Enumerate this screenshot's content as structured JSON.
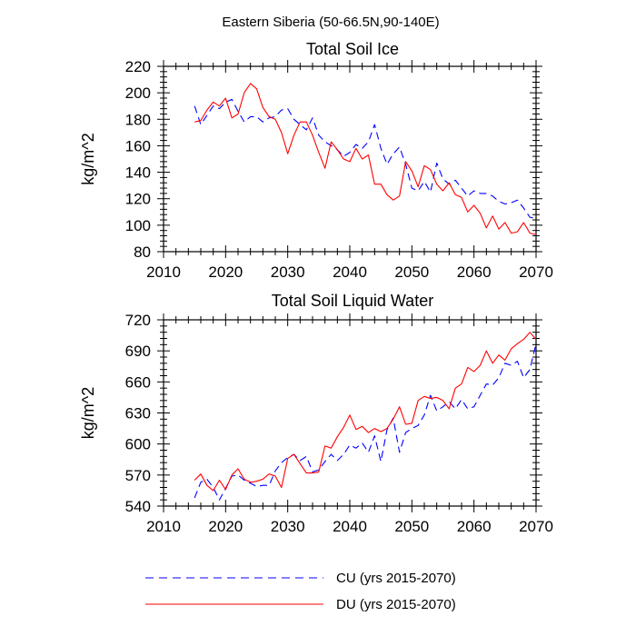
{
  "figure_title": "Eastern Siberia (50-66.5N,90-140E)",
  "legend": [
    {
      "label": "CU (yrs 2015-2070)",
      "color": "#0000ff",
      "dash": "dashed"
    },
    {
      "label": "DU (yrs 2015-2070)",
      "color": "#ff0000",
      "dash": "solid"
    }
  ],
  "chart_data": [
    {
      "type": "line",
      "title": "Total Soil Ice",
      "ylabel": "kg/m^2",
      "xlabel": "",
      "xlim": [
        2010,
        2070
      ],
      "ylim": [
        80,
        220
      ],
      "xticks": [
        2010,
        2020,
        2030,
        2040,
        2050,
        2060,
        2070
      ],
      "yticks": [
        80,
        100,
        120,
        140,
        160,
        180,
        200,
        220
      ],
      "x": [
        2015,
        2016,
        2017,
        2018,
        2019,
        2020,
        2021,
        2022,
        2023,
        2024,
        2025,
        2026,
        2027,
        2028,
        2029,
        2030,
        2031,
        2032,
        2033,
        2034,
        2035,
        2036,
        2037,
        2038,
        2039,
        2040,
        2041,
        2042,
        2043,
        2044,
        2045,
        2046,
        2047,
        2048,
        2049,
        2050,
        2051,
        2052,
        2053,
        2054,
        2055,
        2056,
        2057,
        2058,
        2059,
        2060,
        2061,
        2062,
        2063,
        2064,
        2065,
        2066,
        2067,
        2068,
        2069,
        2070
      ],
      "series": [
        {
          "name": "CU",
          "color": "#0000ff",
          "dash": "dashed",
          "values": [
            190,
            176,
            183,
            190,
            188,
            193,
            195,
            186,
            178,
            182,
            182,
            178,
            181,
            182,
            187,
            188,
            180,
            176,
            172,
            181,
            168,
            163,
            160,
            157,
            152,
            155,
            161,
            158,
            163,
            176,
            158,
            146,
            154,
            159,
            146,
            128,
            126,
            133,
            125,
            147,
            135,
            131,
            134,
            128,
            122,
            126,
            124,
            124,
            122,
            118,
            116,
            117,
            119,
            113,
            106,
            105
          ]
        },
        {
          "name": "DU",
          "color": "#ff0000",
          "dash": "solid",
          "values": [
            178,
            179,
            187,
            193,
            190,
            196,
            181,
            184,
            200,
            207,
            203,
            189,
            182,
            180,
            170,
            154,
            168,
            178,
            178,
            168,
            155,
            143,
            163,
            157,
            150,
            148,
            158,
            150,
            153,
            131,
            131,
            123,
            119,
            122,
            148,
            141,
            129,
            145,
            142,
            131,
            126,
            132,
            123,
            121,
            110,
            115,
            109,
            98,
            107,
            97,
            102,
            94,
            95,
            102,
            94,
            93
          ]
        }
      ]
    },
    {
      "type": "line",
      "title": "Total Soil Liquid Water",
      "ylabel": "kg/m^2",
      "xlabel": "",
      "xlim": [
        2010,
        2070
      ],
      "ylim": [
        540,
        720
      ],
      "xticks": [
        2010,
        2020,
        2030,
        2040,
        2050,
        2060,
        2070
      ],
      "yticks": [
        540,
        570,
        600,
        630,
        660,
        690,
        720
      ],
      "x": [
        2015,
        2016,
        2017,
        2018,
        2019,
        2020,
        2021,
        2022,
        2023,
        2024,
        2025,
        2026,
        2027,
        2028,
        2029,
        2030,
        2031,
        2032,
        2033,
        2034,
        2035,
        2036,
        2037,
        2038,
        2039,
        2040,
        2041,
        2042,
        2043,
        2044,
        2045,
        2046,
        2047,
        2048,
        2049,
        2050,
        2051,
        2052,
        2053,
        2054,
        2055,
        2056,
        2057,
        2058,
        2059,
        2060,
        2061,
        2062,
        2063,
        2064,
        2065,
        2066,
        2067,
        2068,
        2069,
        2070
      ],
      "series": [
        {
          "name": "CU",
          "color": "#0000ff",
          "dash": "dashed",
          "values": [
            548,
            563,
            566,
            558,
            546,
            557,
            569,
            570,
            565,
            562,
            559,
            560,
            560,
            574,
            582,
            587,
            590,
            584,
            588,
            573,
            575,
            583,
            590,
            584,
            590,
            599,
            596,
            601,
            592,
            608,
            583,
            614,
            625,
            592,
            611,
            615,
            618,
            628,
            647,
            632,
            636,
            641,
            634,
            643,
            634,
            636,
            647,
            658,
            657,
            664,
            678,
            676,
            680,
            664,
            672,
            697
          ]
        },
        {
          "name": "DU",
          "color": "#ff0000",
          "dash": "solid",
          "values": [
            565,
            571,
            560,
            555,
            565,
            556,
            570,
            576,
            566,
            563,
            564,
            566,
            571,
            569,
            558,
            586,
            590,
            581,
            572,
            572,
            573,
            598,
            596,
            607,
            616,
            628,
            614,
            617,
            611,
            615,
            612,
            615,
            624,
            636,
            619,
            620,
            642,
            646,
            644,
            645,
            642,
            634,
            654,
            658,
            674,
            670,
            676,
            690,
            678,
            686,
            681,
            692,
            697,
            701,
            708,
            701
          ]
        }
      ]
    }
  ]
}
